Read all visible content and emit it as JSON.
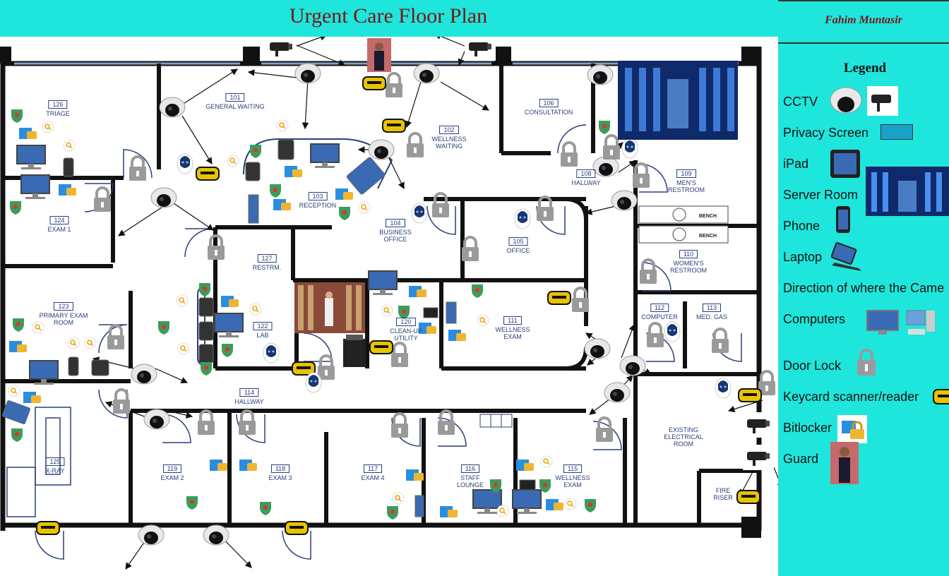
{
  "title": "Urgent Care Floor Plan",
  "author": "Fahim Muntasir",
  "legend": {
    "title": "Legend",
    "items": [
      {
        "label": "CCTV",
        "icon": "cctv-icon"
      },
      {
        "label": "Privacy Screen",
        "icon": "privacy-screen-icon"
      },
      {
        "label": "iPad",
        "icon": "ipad-icon"
      },
      {
        "label": "Server Room",
        "icon": "server-room-icon"
      },
      {
        "label": "Phone",
        "icon": "phone-icon"
      },
      {
        "label": "Laptop",
        "icon": "laptop-icon"
      },
      {
        "label": "Direction of where the Came",
        "icon": "arrow-icon"
      },
      {
        "label": "Computers",
        "icon": "computer-icon"
      },
      {
        "label": "Door Lock",
        "icon": "padlock-icon"
      },
      {
        "label": "Keycard scanner/reader",
        "icon": "keycard-reader-icon"
      },
      {
        "label": "Bitlocker",
        "icon": "bitlocker-icon"
      },
      {
        "label": "Guard",
        "icon": "guard-icon"
      }
    ]
  },
  "rooms": [
    {
      "number": "126",
      "name": "TRIAGE"
    },
    {
      "number": "101",
      "name": "GENERAL WAITING"
    },
    {
      "number": "102",
      "name": "WELLNESS WAITING"
    },
    {
      "number": "106",
      "name": "CONSULTATION"
    },
    {
      "number": "108",
      "name": "HALLWAY"
    },
    {
      "number": "109",
      "name": "MEN'S RESTROOM"
    },
    {
      "number": "110",
      "name": "WOMEN'S RESTROOM"
    },
    {
      "number": "124",
      "name": "EXAM 1"
    },
    {
      "number": "103",
      "name": "RECEPTION"
    },
    {
      "number": "104",
      "name": "BUSINESS OFFICE"
    },
    {
      "number": "105",
      "name": "OFFICE"
    },
    {
      "number": "127",
      "name": "RESTRM."
    },
    {
      "number": "123",
      "name": "PRIMARY EXAM ROOM"
    },
    {
      "number": "122",
      "name": "LAB"
    },
    {
      "number": "120",
      "name": "CLEAN-UP UTILITY"
    },
    {
      "number": "111",
      "name": "WELLNESS EXAM"
    },
    {
      "number": "112",
      "name": "COMPUTER"
    },
    {
      "number": "113",
      "name": "MED. GAS"
    },
    {
      "number": "114",
      "name": "HALLWAY"
    },
    {
      "number": "125",
      "name": "X-RAY"
    },
    {
      "number": "119",
      "name": "EXAM 2"
    },
    {
      "number": "118",
      "name": "EXAM 3"
    },
    {
      "number": "117",
      "name": "EXAM 4"
    },
    {
      "number": "116",
      "name": "STAFF LOUNGE"
    },
    {
      "number": "115",
      "name": "WELLNESS EXAM"
    },
    {
      "number": "",
      "name": "EXISTING ELECTRICAL ROOM"
    },
    {
      "number": "",
      "name": "FIRE RISER"
    }
  ],
  "bench_label": "BENCH",
  "colors": {
    "background": "#1ee6dc",
    "title": "#7a1515",
    "wall": "#111111",
    "room_text": "#2a3f7a",
    "keycard": "#e8c400",
    "lock": "#9a9a9a",
    "privacy_screen": "#1aa3c9"
  }
}
